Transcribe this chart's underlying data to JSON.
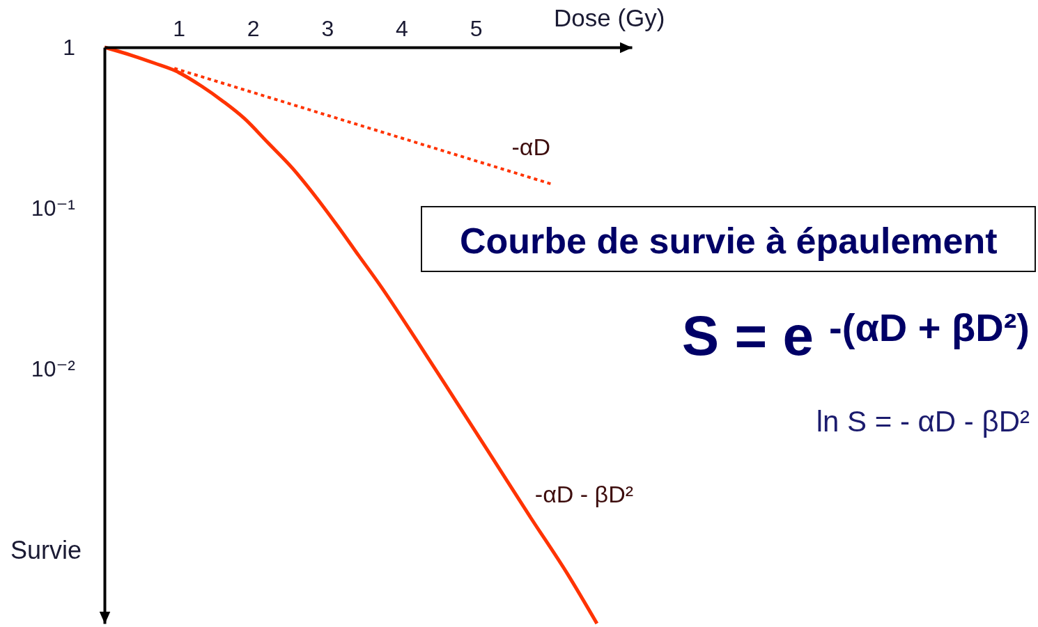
{
  "chart_data": {
    "type": "line",
    "title": "Courbe de survie à épaulement",
    "xlabel": "Dose (Gy)",
    "ylabel": "Survie",
    "annotations": [
      "S = e $^{-(αD + βD²)}$",
      "ln S = - αD - βD²"
    ],
    "log": "y",
    "xlim": [
      0,
      7.1
    ],
    "xticks": [
      1,
      2,
      3,
      4,
      5
    ],
    "ylim": [
      0.00026,
      1
    ],
    "yticks": [
      1,
      {
        "value": 0.1,
        "label": "10⁻¹"
      },
      {
        "value": 0.01,
        "label": "10⁻²"
      }
    ],
    "series": [
      {
        "name": "-αD",
        "color": "#ff3300",
        "line_style": "dotted",
        "x": [
          0.94,
          6.04
        ],
        "values": [
          0.74,
          0.14
        ]
      },
      {
        "name": "-αD - βD²",
        "color": "#ff3300",
        "line_style": "solid",
        "x": [
          0,
          0.38,
          0.68,
          0.96,
          1.31,
          1.6,
          1.88,
          2.2,
          2.53,
          2.86,
          3.14,
          3.42,
          3.71,
          4.22,
          4.74,
          5.21,
          5.72,
          6.24,
          6.63
        ],
        "values": [
          1,
          0.887,
          0.795,
          0.712,
          0.572,
          0.46,
          0.362,
          0.255,
          0.177,
          0.115,
          0.0771,
          0.0508,
          0.0331,
          0.0146,
          0.0062,
          0.00285,
          0.00122,
          0.000523,
          0.00026
        ]
      }
    ]
  }
}
